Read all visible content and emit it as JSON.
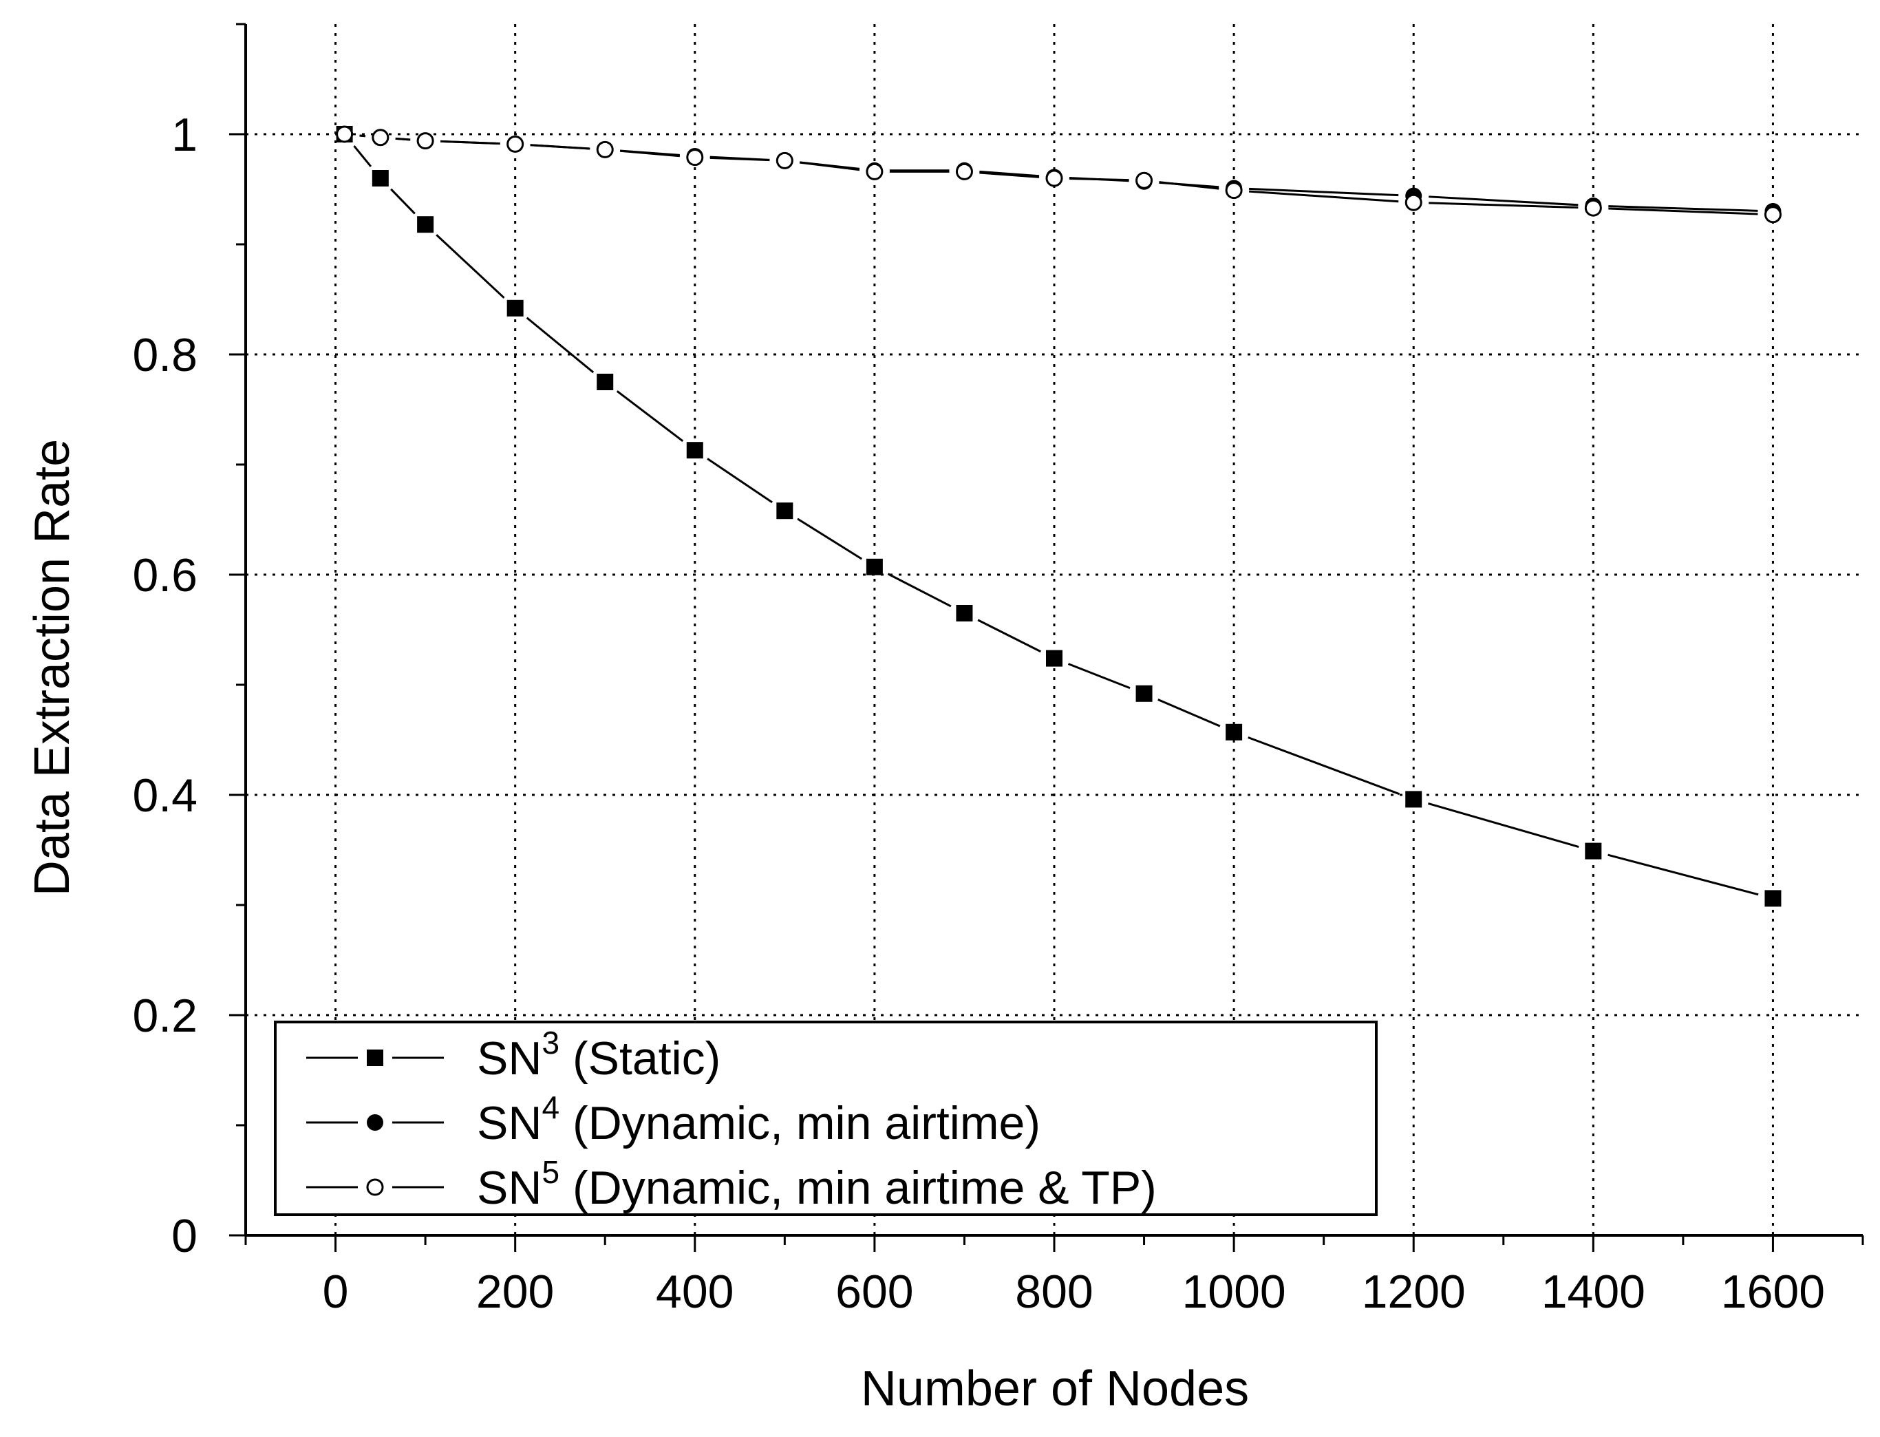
{
  "chart_data": {
    "type": "line",
    "title": "",
    "xlabel": "Number of Nodes",
    "ylabel": "Data Extraction Rate",
    "xlim": [
      -100,
      1700
    ],
    "ylim": [
      0,
      1.1
    ],
    "x_ticks": [
      0,
      200,
      400,
      600,
      800,
      1000,
      1200,
      1400,
      1600
    ],
    "x_tick_labels": [
      "0",
      "200",
      "400",
      "600",
      "800",
      "1000",
      "1200",
      "1400",
      "1600"
    ],
    "y_ticks": [
      0,
      0.2,
      0.4,
      0.6,
      0.8,
      1
    ],
    "y_tick_labels": [
      "0",
      "0.2",
      "0.4",
      "0.6",
      "0.8",
      "1"
    ],
    "grid": true,
    "legend_position": "bottom-left",
    "series": [
      {
        "name": "SN3 (Static)",
        "name_parts": {
          "base": "SN",
          "sup": "3",
          "rest": " (Static)"
        },
        "marker": "filled-square",
        "x": [
          10,
          50,
          100,
          200,
          300,
          400,
          500,
          600,
          700,
          800,
          900,
          1000,
          1200,
          1400,
          1600
        ],
        "values": [
          1.0,
          0.96,
          0.918,
          0.842,
          0.775,
          0.713,
          0.658,
          0.607,
          0.565,
          0.524,
          0.492,
          0.457,
          0.396,
          0.349,
          0.306
        ]
      },
      {
        "name": "SN4 (Dynamic, min airtime)",
        "name_parts": {
          "base": "SN",
          "sup": "4",
          "rest": " (Dynamic, min airtime)"
        },
        "marker": "filled-circle",
        "x": [
          10,
          50,
          100,
          200,
          300,
          400,
          500,
          600,
          700,
          800,
          900,
          1000,
          1200,
          1400,
          1600
        ],
        "values": [
          1.0,
          0.997,
          0.994,
          0.991,
          0.986,
          0.98,
          0.976,
          0.967,
          0.967,
          0.961,
          0.957,
          0.951,
          0.944,
          0.935,
          0.93
        ]
      },
      {
        "name": "SN5 (Dynamic, min airtime & TP)",
        "name_parts": {
          "base": "SN",
          "sup": "5",
          "rest": " (Dynamic, min airtime & TP)"
        },
        "marker": "open-circle",
        "x": [
          10,
          50,
          100,
          200,
          300,
          400,
          500,
          600,
          700,
          800,
          900,
          1000,
          1200,
          1400,
          1600
        ],
        "values": [
          1.0,
          0.997,
          0.994,
          0.991,
          0.986,
          0.979,
          0.976,
          0.966,
          0.966,
          0.96,
          0.958,
          0.949,
          0.938,
          0.933,
          0.927
        ]
      }
    ],
    "colors": {
      "line": "#000000",
      "grid": "#000000",
      "background": "#ffffff"
    }
  }
}
